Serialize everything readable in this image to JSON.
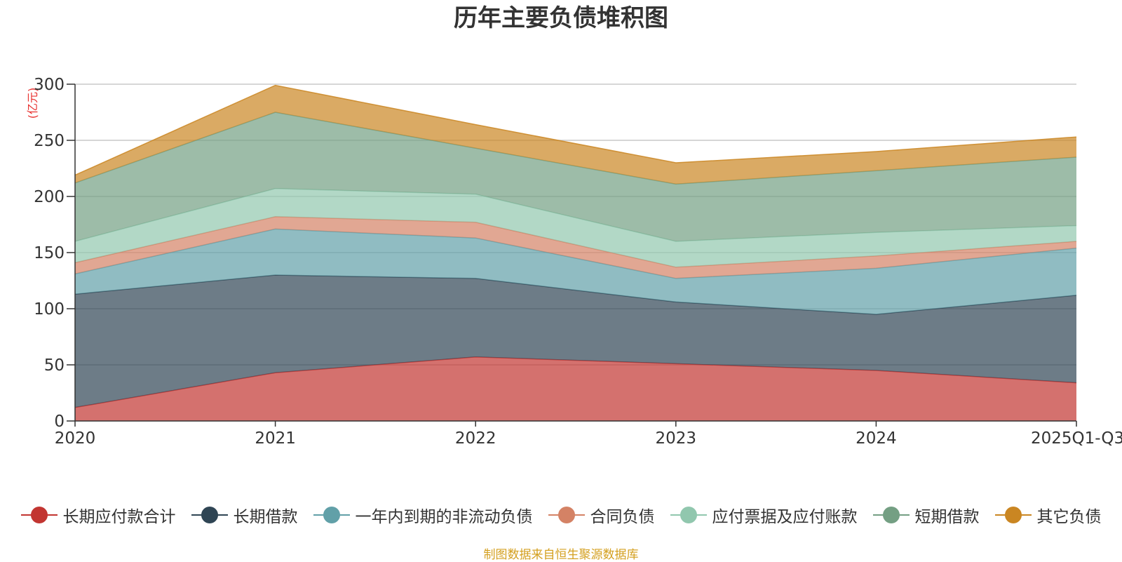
{
  "chart_data": {
    "type": "area",
    "stacked": true,
    "title": "历年主要负债堆积图",
    "ylabel": "(亿元)",
    "xlabel": "",
    "ylim": [
      0,
      300
    ],
    "yticks": [
      0,
      50,
      100,
      150,
      200,
      250,
      300
    ],
    "categories": [
      "2020",
      "2021",
      "2022",
      "2023",
      "2024",
      "2025Q1-Q3"
    ],
    "grid": true,
    "legend_position": "bottom",
    "series": [
      {
        "name": "长期应付款合计",
        "color": "#c23531",
        "values": [
          12,
          43,
          57,
          51,
          45,
          34
        ]
      },
      {
        "name": "长期借款",
        "color": "#2f4554",
        "values": [
          101,
          87,
          70,
          55,
          50,
          78
        ]
      },
      {
        "name": "一年内到期的非流动负债",
        "color": "#61a0a8",
        "values": [
          18,
          41,
          36,
          21,
          41,
          42
        ]
      },
      {
        "name": "合同负债",
        "color": "#d48265",
        "values": [
          10,
          11,
          14,
          10,
          11,
          6
        ]
      },
      {
        "name": "应付票据及应付账款",
        "color": "#91c7ae",
        "values": [
          19,
          25,
          25,
          23,
          21,
          14
        ]
      },
      {
        "name": "短期借款",
        "color": "#749f83",
        "values": [
          52,
          68,
          41,
          51,
          55,
          61
        ]
      },
      {
        "name": "其它负债",
        "color": "#ca8622",
        "values": [
          7,
          24,
          21,
          19,
          17,
          18
        ]
      }
    ],
    "source": "制图数据来自恒生聚源数据库"
  }
}
